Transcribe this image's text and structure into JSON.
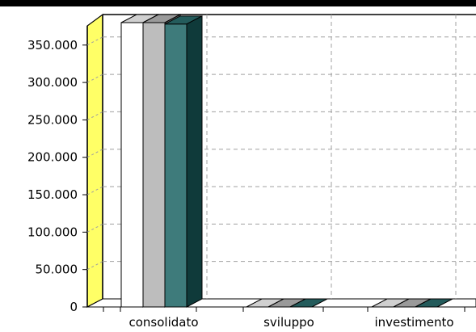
{
  "chart_data": {
    "type": "bar",
    "title": "",
    "xlabel": "",
    "ylabel": "",
    "categories": [
      "consolidato",
      "sviluppo",
      "investimento"
    ],
    "series": [
      {
        "values": [
          380000,
          0,
          0
        ]
      },
      {
        "values": [
          380000,
          0,
          0
        ]
      },
      {
        "values": [
          378000,
          0,
          0
        ]
      }
    ],
    "ylim": [
      0,
      380000
    ],
    "ytick_values": [
      0,
      50000,
      100000,
      150000,
      200000,
      250000,
      300000,
      350000
    ],
    "ytick_labels": [
      "0",
      "50.000",
      "100.000",
      "150.000",
      "200.000",
      "250.000",
      "300.000",
      "350.000"
    ],
    "grid": true,
    "style": "3d"
  },
  "colors": {
    "series": [
      "#ffffff",
      "#bdbdbd",
      "#3e7b7b"
    ],
    "series_top": [
      "#d0d0d0",
      "#9a9a9a",
      "#245c5c"
    ],
    "series_side": [
      "#8a8a8a",
      "#6e6e6e",
      "#0f3a3a"
    ],
    "back_wall_edge": "#000000",
    "side_wall": "#ffff66",
    "grid": "#a0a0a0"
  }
}
